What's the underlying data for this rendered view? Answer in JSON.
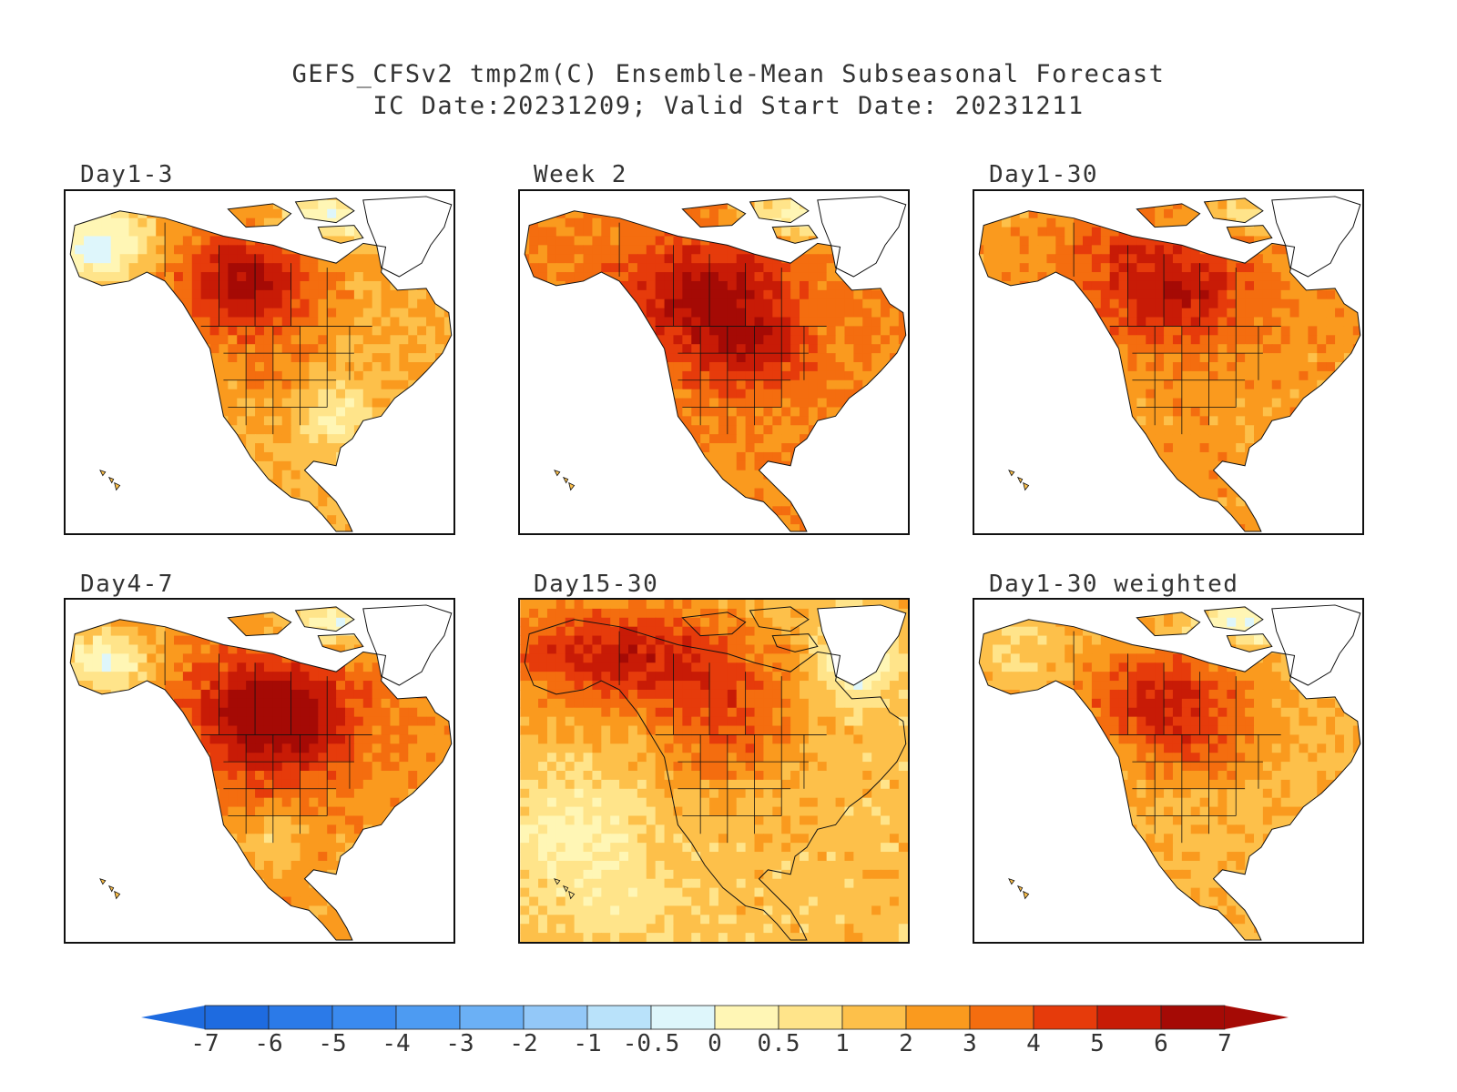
{
  "title": {
    "line1": "GEFS_CFSv2 tmp2m(C) Ensemble-Mean Subseasonal Forecast",
    "line2": "IC Date:20231209; Valid Start Date: 20231211"
  },
  "panels": [
    {
      "label": "Day1-3",
      "ocean_filled": false,
      "pattern": "Warm central/eastern Canada and western US; cool Alaska, Arctic islands, southeastern US"
    },
    {
      "label": "Week 2",
      "ocean_filled": false,
      "pattern": "Warm across most of North America, strongest over central Canada and Great Lakes; cool Arctic islands"
    },
    {
      "label": "Day1-30",
      "ocean_filled": false,
      "pattern": "Warm across North America, strongest over central Canada"
    },
    {
      "label": "Day4-7",
      "ocean_filled": false,
      "pattern": "Strong warmth over central Canada and northern US; cool Alaska and Arctic islands"
    },
    {
      "label": "Day15-30",
      "ocean_filled": true,
      "pattern": "Warm over land and ocean, strongest Alaska/central Canada; cool Baffin region"
    },
    {
      "label": "Day1-30 weighted",
      "ocean_filled": false,
      "pattern": "Moderate warmth across North America, strongest central Canada; cool Arctic islands"
    }
  ],
  "colorbar": {
    "units": "C",
    "tick_labels": [
      "-7",
      "-6",
      "-5",
      "-4",
      "-3",
      "-2",
      "-1",
      "-0.5",
      "0",
      "0.5",
      "1",
      "2",
      "3",
      "4",
      "5",
      "6",
      "7"
    ],
    "colors": [
      "#1e6be0",
      "#2b7ae8",
      "#3a8aef",
      "#4d9bf2",
      "#6bb0f5",
      "#93c8f8",
      "#b9e2fa",
      "#def6fb",
      "#fff6b5",
      "#ffe48a",
      "#fdc04a",
      "#fa9a1e",
      "#f46d0f",
      "#e63b0b",
      "#c81b06",
      "#a50a05"
    ],
    "extend_min_color": "#1e6be0",
    "extend_max_color": "#a50a05"
  }
}
